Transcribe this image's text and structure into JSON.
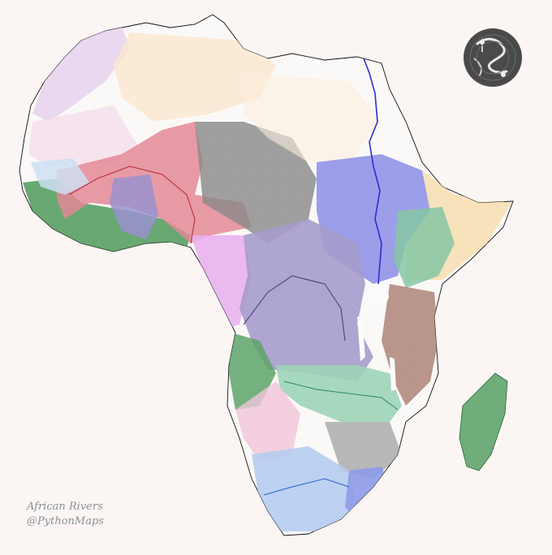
{
  "caption": {
    "line1": "African Rivers",
    "line2": "@PythonMaps"
  },
  "colors": {
    "background": "#fbf6f4",
    "coastline": "#111111",
    "nile": "#2b2fd1",
    "congo_basin": "#8d80b8",
    "niger_basin": "#d9505f",
    "guinea_coast": "#2f7d3a",
    "zambezi_basin": "#66b98f",
    "orange_basin": "#5c8fe0",
    "rift_basin": "#8a5a4e",
    "chad_basin": "#333333",
    "sahara_wadis": "#f5b56b",
    "maghreb": "#b57ad1",
    "madagascar": "#3f8f4f",
    "namibia": "#e6a6c4",
    "gabon_coast": "#e39be6",
    "logo": "#555555"
  },
  "map_features": [
    "africa-landmass",
    "nile-river",
    "congo-basin",
    "niger-basin",
    "chad-basin",
    "zambezi-basin",
    "orange-basin",
    "madagascar",
    "pythonmaps-logo"
  ]
}
